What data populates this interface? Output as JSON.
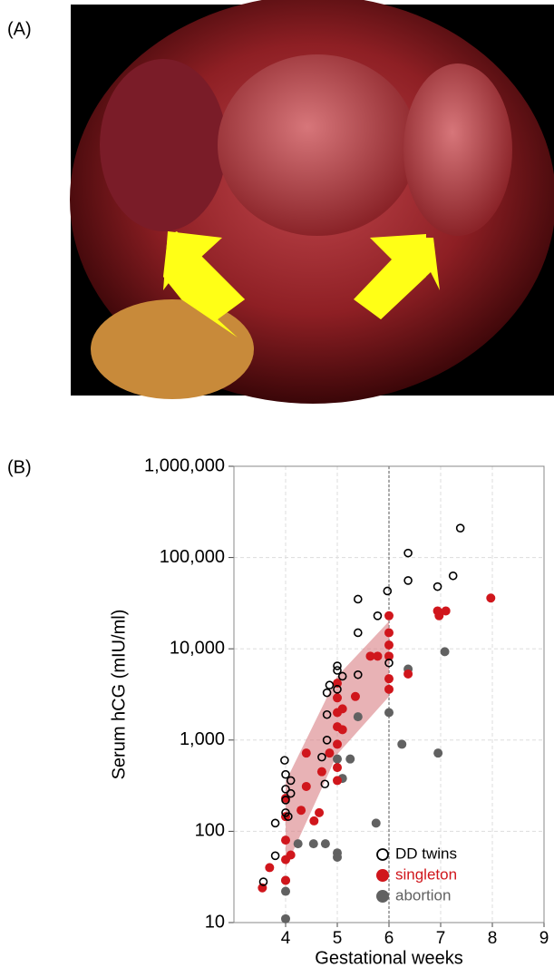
{
  "panel_labels": [
    "(A)",
    "(B)"
  ],
  "chart_data": {
    "type": "scatter",
    "xlabel": "Gestational weeks",
    "ylabel": "Serum hCG (mIU/ml)",
    "xlim": [
      3,
      9
    ],
    "ylim": [
      10,
      1000000
    ],
    "log_y": true,
    "grid": true,
    "legend": "lower right",
    "xticks": [
      4,
      5,
      6,
      7,
      8,
      9
    ],
    "yticks": [
      {
        "value": 10,
        "label": "10"
      },
      {
        "value": 100,
        "label": "100"
      },
      {
        "value": 1000,
        "label": "1,000"
      },
      {
        "value": 10000,
        "label": "10,000"
      },
      {
        "value": 100000,
        "label": "100,000"
      },
      {
        "value": 1000000,
        "label": "1,000,000"
      }
    ],
    "vlines": [
      6
    ],
    "band": {
      "color": "#d97f84",
      "x": [
        4,
        5,
        6
      ],
      "lower": [
        40,
        700,
        3000
      ],
      "upper": [
        350,
        5000,
        20000
      ]
    },
    "series": [
      {
        "name": "DD twins",
        "color": "#000000",
        "hollow": true,
        "x": [
          3.57,
          3.8,
          3.8,
          3.98,
          4,
          4,
          4,
          4,
          4.05,
          4.1,
          4.1,
          4.76,
          4.7,
          4.8,
          4.8,
          4.8,
          4.85,
          5,
          5,
          5,
          5.1,
          5.4,
          5.4,
          5.4,
          5.78,
          5.97,
          6,
          6.37,
          6.37,
          6.94,
          7.24,
          7.38
        ],
        "values": [
          28,
          54,
          123,
          600,
          420,
          290,
          220,
          160,
          145,
          360,
          260,
          330,
          650,
          1000,
          1900,
          3300,
          4000,
          3600,
          6500,
          5800,
          5000,
          15000,
          35000,
          5200,
          23000,
          43000,
          7000,
          112000,
          56000,
          48000,
          63000,
          210000
        ]
      },
      {
        "name": "singleton",
        "color": "#d0161c",
        "hollow": false,
        "x": [
          3.55,
          3.69,
          4,
          4,
          4,
          4,
          4,
          4.1,
          4.3,
          4.4,
          4.4,
          4.55,
          4.65,
          4.7,
          4.85,
          5,
          5,
          5,
          5,
          5,
          5,
          5,
          5.1,
          5.1,
          5.35,
          5.64,
          5.78,
          6,
          6,
          6,
          6,
          6,
          6,
          6.37,
          6.94,
          6.97,
          7.1,
          7.97
        ],
        "values": [
          24,
          40,
          49,
          145,
          80,
          29,
          230,
          55,
          170,
          720,
          310,
          130,
          160,
          450,
          720,
          900,
          1400,
          2000,
          2900,
          4200,
          500,
          360,
          1300,
          2200,
          3000,
          8300,
          8300,
          8300,
          23000,
          15000,
          11000,
          3600,
          4700,
          5300,
          26000,
          23000,
          26000,
          36000
        ]
      },
      {
        "name": "abortion",
        "color": "#616161",
        "hollow": false,
        "x": [
          4,
          4,
          4,
          4.24,
          4.54,
          4.77,
          5,
          5,
          5,
          5.1,
          5.25,
          5.4,
          5.75,
          6,
          6.25,
          6.37,
          7.08,
          6.95
        ],
        "values": [
          11,
          29,
          22,
          73,
          73,
          73,
          58,
          52,
          620,
          380,
          620,
          1800,
          123,
          2000,
          900,
          6000,
          9300,
          720
        ]
      }
    ]
  }
}
